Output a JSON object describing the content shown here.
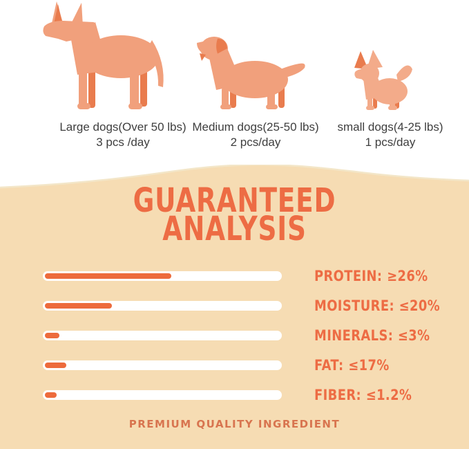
{
  "feeding_guide": {
    "items": [
      {
        "icon": "large-dog-icon",
        "label": "Large dogs(Over 50 lbs)",
        "amount": "3 pcs /day"
      },
      {
        "icon": "medium-dog-icon",
        "label": "Medium dogs(25-50 lbs)",
        "amount": "2 pcs/day"
      },
      {
        "icon": "small-dog-icon",
        "label": "small dogs(4-25 lbs)",
        "amount": "1 pcs/day"
      }
    ]
  },
  "analysis": {
    "title_line1": "GUARANTEED",
    "title_line2": "ANALYSIS",
    "rows": [
      {
        "label": "PROTEIN: ≥26%",
        "fraction": 0.53
      },
      {
        "label": "MOISTURE: ≤20%",
        "fraction": 0.28
      },
      {
        "label": "MINERALS: ≤3%",
        "fraction": 0.06
      },
      {
        "label": "FAT: ≤17%",
        "fraction": 0.09
      },
      {
        "label": "FIBER: ≤1.2%",
        "fraction": 0.05
      }
    ],
    "footer": "PREMIUM QUALITY INGREDIENT"
  },
  "chart_data": {
    "type": "bar",
    "orientation": "horizontal",
    "title": "GUARANTEED ANALYSIS",
    "categories": [
      "PROTEIN",
      "MOISTURE",
      "MINERALS",
      "FAT",
      "FIBER"
    ],
    "values": [
      26,
      20,
      3,
      17,
      1.2
    ],
    "value_labels": [
      "≥26%",
      "≤20%",
      "≤3%",
      "≤17%",
      "≤1.2%"
    ],
    "bar_fill_fractions": [
      0.53,
      0.28,
      0.06,
      0.09,
      0.05
    ],
    "legend": "none",
    "grid": false
  },
  "colors": {
    "background_top": "#ffffff",
    "background_bottom": "#f6dcb3",
    "wave_highlight": "#f3e6c8",
    "accent_orange": "#ed6c44",
    "bar_fill": "#ed6b3c",
    "bar_track": "#ffffff",
    "dog_body": "#f1a07c",
    "dog_body_light": "#f3ab8a",
    "dog_accent": "#e97c4e",
    "label_text": "#3e3e3e",
    "footer_text": "#d8744f"
  }
}
